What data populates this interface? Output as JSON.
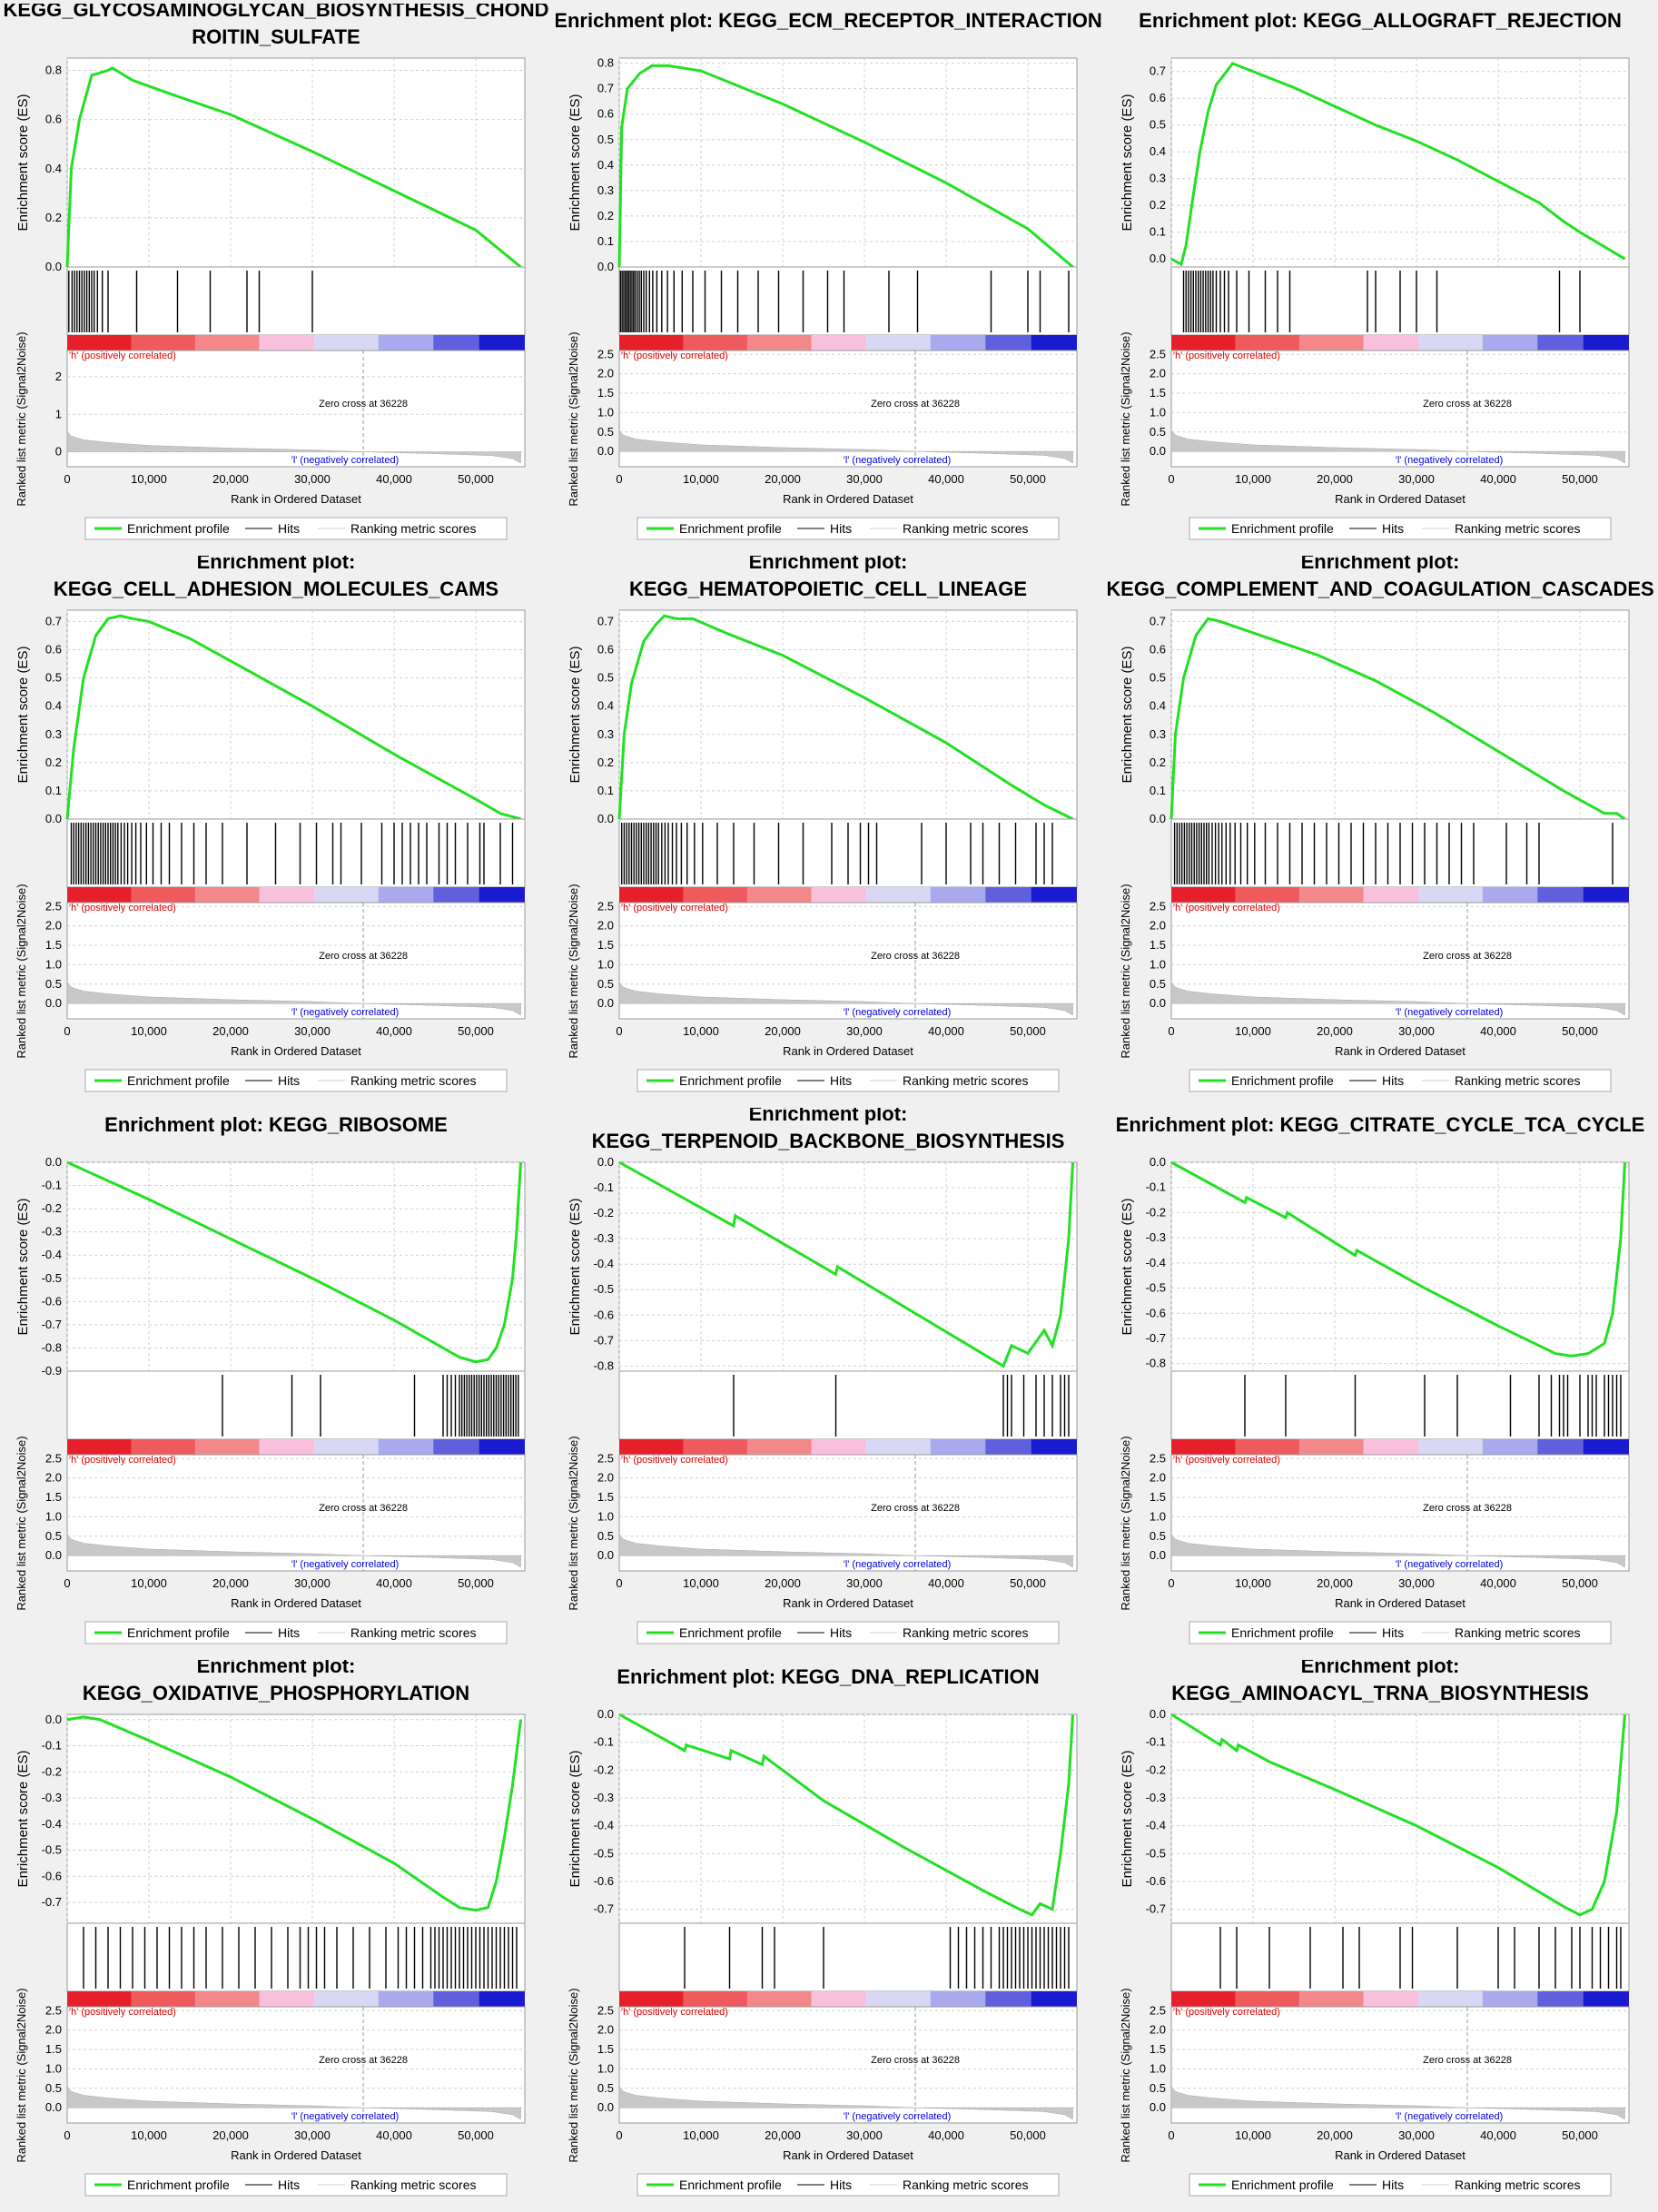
{
  "colors": {
    "es_line": "#22e022",
    "hit": "#000000",
    "bg": "#f0f0f0",
    "plot_bg": "#ffffff",
    "grid": "#d0d0d0",
    "pos_label": "#e00000",
    "neg_label": "#0000e0",
    "metric_fill": "#c8c8c8",
    "heat_bins": [
      "#e6202a",
      "#ef5a5e",
      "#f4878a",
      "#f9c0dd",
      "#d8d8f4",
      "#a9a9ee",
      "#6060de",
      "#1a1ad0"
    ]
  },
  "labels": {
    "title_prefix": "Enrichment plot:",
    "es_ylabel": "Enrichment score (ES)",
    "metric_ylabel": "Ranked list metric (Signal2Noise)",
    "xlabel": "Rank in Ordered Dataset",
    "pos_corr": "'h' (positively correlated)",
    "neg_corr": "'l' (negatively correlated)",
    "zero_cross": "Zero cross at 36228",
    "legend": [
      "Enrichment profile",
      "Hits",
      "Ranking metric scores"
    ],
    "x_ticks": [
      "0",
      "10,000",
      "20,000",
      "30,000",
      "40,000",
      "50,000"
    ],
    "metric_ticks_a": [
      "0",
      "1",
      "2"
    ],
    "metric_ticks_b": [
      "0.0",
      "0.5",
      "1.0",
      "1.5",
      "2.0",
      "2.5"
    ]
  },
  "chart_data": [
    {
      "type": "line",
      "title": "KEGG_GLYCOSAMINOGLYCAN_BIOSYNTHESIS_CHOND ROITIN_SULFATE",
      "title_lines": [
        "KEGG_GLYCOSAMINOGLYCAN_BIOSYNTHESIS_CHOND",
        "ROITIN_SULFATE"
      ],
      "x_range": [
        0,
        56000
      ],
      "es_ticks": [
        "0.0",
        "0.2",
        "0.4",
        "0.6",
        "0.8"
      ],
      "es_range": [
        0,
        0.85
      ],
      "metric_ticks": "a",
      "es_x": [
        0,
        500,
        1500,
        3000,
        5000,
        5500,
        8000,
        13000,
        20000,
        30000,
        40000,
        50000,
        55500
      ],
      "es_y": [
        0,
        0.4,
        0.6,
        0.78,
        0.8,
        0.81,
        0.76,
        0.7,
        0.62,
        0.47,
        0.31,
        0.15,
        0.0
      ],
      "hits": [
        200,
        600,
        900,
        1200,
        1500,
        1800,
        2100,
        2400,
        2700,
        3000,
        3300,
        3700,
        4300,
        5000,
        8500,
        13500,
        17500,
        22000,
        23500,
        30000
      ]
    },
    {
      "type": "line",
      "title": "KEGG_ECM_RECEPTOR_INTERACTION",
      "title_lines": [
        "Enrichment plot: KEGG_ECM_RECEPTOR_INTERACTION"
      ],
      "x_range": [
        0,
        56000
      ],
      "es_ticks": [
        "0.0",
        "0.1",
        "0.2",
        "0.3",
        "0.4",
        "0.5",
        "0.6",
        "0.7",
        "0.8"
      ],
      "es_range": [
        0,
        0.82
      ],
      "metric_ticks": "b",
      "es_x": [
        0,
        300,
        1000,
        2500,
        4000,
        6000,
        10000,
        20000,
        30000,
        40000,
        50000,
        55500
      ],
      "es_y": [
        0,
        0.55,
        0.7,
        0.76,
        0.79,
        0.79,
        0.77,
        0.64,
        0.49,
        0.33,
        0.15,
        0.0
      ],
      "hits": [
        150,
        350,
        550,
        750,
        950,
        1150,
        1350,
        1550,
        1750,
        1950,
        2200,
        2450,
        2700,
        3000,
        3300,
        3700,
        4100,
        4600,
        5200,
        5900,
        6700,
        7700,
        9000,
        10500,
        12500,
        14500,
        17000,
        19500,
        22500,
        25500,
        27500,
        33000,
        36500,
        45500,
        50000,
        51500,
        55000
      ]
    },
    {
      "type": "line",
      "title": "KEGG_ALLOGRAFT_REJECTION",
      "title_lines": [
        "Enrichment plot: KEGG_ALLOGRAFT_REJECTION"
      ],
      "x_range": [
        0,
        56000
      ],
      "es_ticks": [
        "0.0",
        "0.1",
        "0.2",
        "0.3",
        "0.4",
        "0.5",
        "0.6",
        "0.7"
      ],
      "es_range": [
        -0.03,
        0.75
      ],
      "metric_ticks": "b",
      "es_x": [
        0,
        1200,
        1800,
        2500,
        3500,
        4500,
        5500,
        7500,
        10000,
        15000,
        20000,
        25000,
        30000,
        35000,
        40000,
        45000,
        48000,
        50000,
        55500
      ],
      "es_y": [
        0,
        -0.02,
        0.05,
        0.2,
        0.4,
        0.55,
        0.65,
        0.73,
        0.7,
        0.64,
        0.57,
        0.5,
        0.44,
        0.37,
        0.29,
        0.21,
        0.14,
        0.1,
        0.0
      ],
      "hits": [
        1500,
        1800,
        2100,
        2400,
        2700,
        3000,
        3300,
        3600,
        3900,
        4200,
        4500,
        4800,
        5100,
        5500,
        6000,
        6500,
        7000,
        8000,
        9500,
        11500,
        13000,
        14500,
        24000,
        25000,
        28000,
        30000,
        32500,
        47500,
        50000
      ]
    },
    {
      "type": "line",
      "title": "KEGG_CELL_ADHESION_MOLECULES_CAMS",
      "title_lines": [
        "Enrichment plot:",
        "KEGG_CELL_ADHESION_MOLECULES_CAMS"
      ],
      "x_range": [
        0,
        56000
      ],
      "es_ticks": [
        "0.0",
        "0.1",
        "0.2",
        "0.3",
        "0.4",
        "0.5",
        "0.6",
        "0.7"
      ],
      "es_range": [
        0,
        0.74
      ],
      "metric_ticks": "b",
      "es_x": [
        0,
        800,
        2000,
        3500,
        5000,
        6500,
        8000,
        10000,
        15000,
        20000,
        30000,
        40000,
        50000,
        53000,
        55500
      ],
      "es_y": [
        0,
        0.25,
        0.5,
        0.65,
        0.71,
        0.72,
        0.71,
        0.7,
        0.64,
        0.56,
        0.4,
        0.23,
        0.07,
        0.02,
        0.0
      ],
      "hits": [
        500,
        800,
        1100,
        1400,
        1700,
        2000,
        2300,
        2600,
        2900,
        3200,
        3500,
        3800,
        4100,
        4400,
        4700,
        5000,
        5300,
        5600,
        5900,
        6200,
        6600,
        7000,
        7400,
        7900,
        8400,
        9000,
        9700,
        10500,
        11500,
        12500,
        14000,
        15500,
        17000,
        19000,
        22000,
        25500,
        28500,
        30500,
        32500,
        33500,
        36000,
        38500,
        40000,
        41000,
        42000,
        43000,
        44000,
        45500,
        46500,
        47500,
        49000,
        50500,
        51000,
        53000,
        54500
      ]
    },
    {
      "type": "line",
      "title": "KEGG_HEMATOPOIETIC_CELL_LINEAGE",
      "title_lines": [
        "Enrichment plot:",
        "KEGG_HEMATOPOIETIC_CELL_LINEAGE"
      ],
      "x_range": [
        0,
        56000
      ],
      "es_ticks": [
        "0.0",
        "0.1",
        "0.2",
        "0.3",
        "0.4",
        "0.5",
        "0.6",
        "0.7"
      ],
      "es_range": [
        0,
        0.74
      ],
      "metric_ticks": "b",
      "es_x": [
        0,
        600,
        1500,
        3000,
        4500,
        5500,
        7000,
        9000,
        13000,
        20000,
        30000,
        40000,
        48000,
        52000,
        55500
      ],
      "es_y": [
        0,
        0.3,
        0.48,
        0.63,
        0.69,
        0.72,
        0.71,
        0.71,
        0.66,
        0.58,
        0.43,
        0.27,
        0.12,
        0.05,
        0.0
      ],
      "hits": [
        300,
        600,
        900,
        1200,
        1500,
        1800,
        2100,
        2400,
        2700,
        3000,
        3300,
        3600,
        3900,
        4200,
        4500,
        4800,
        5200,
        5600,
        6000,
        6500,
        7000,
        7600,
        8300,
        9200,
        10200,
        12000,
        14000,
        16500,
        19500,
        22500,
        26000,
        28000,
        29500,
        30500,
        31500,
        37000,
        40000,
        43000,
        44500,
        46500,
        48500,
        51000,
        52000,
        53000
      ]
    },
    {
      "type": "line",
      "title": "KEGG_COMPLEMENT_AND_COAGULATION_CASCADES",
      "title_lines": [
        "Enrichment plot:",
        "KEGG_COMPLEMENT_AND_COAGULATION_CASCADES"
      ],
      "x_range": [
        0,
        56000
      ],
      "es_ticks": [
        "0.0",
        "0.1",
        "0.2",
        "0.3",
        "0.4",
        "0.5",
        "0.6",
        "0.7"
      ],
      "es_range": [
        0,
        0.74
      ],
      "metric_ticks": "b",
      "es_x": [
        0,
        500,
        1500,
        3000,
        4500,
        6000,
        8000,
        12000,
        18000,
        25000,
        32000,
        40000,
        48000,
        53000,
        54500,
        55500
      ],
      "es_y": [
        0,
        0.3,
        0.5,
        0.65,
        0.71,
        0.7,
        0.68,
        0.64,
        0.58,
        0.49,
        0.38,
        0.24,
        0.1,
        0.02,
        0.02,
        0.0
      ],
      "hits": [
        400,
        700,
        1000,
        1300,
        1600,
        1900,
        2200,
        2500,
        2800,
        3100,
        3400,
        3700,
        4000,
        4300,
        4600,
        5000,
        5400,
        5800,
        6200,
        6700,
        7200,
        7800,
        8500,
        9300,
        10200,
        11500,
        13000,
        14500,
        16000,
        17500,
        19000,
        20500,
        22000,
        23500,
        25000,
        26500,
        28000,
        29500,
        31000,
        32500,
        34000,
        35500,
        37000,
        41000,
        43500,
        45000,
        54000
      ]
    },
    {
      "type": "line",
      "title": "KEGG_RIBOSOME",
      "title_lines": [
        "Enrichment plot: KEGG_RIBOSOME"
      ],
      "x_range": [
        0,
        56000
      ],
      "es_ticks": [
        "0.0",
        "-0.1",
        "-0.2",
        "-0.3",
        "-0.4",
        "-0.5",
        "-0.6",
        "-0.7",
        "-0.8",
        "-0.9"
      ],
      "es_range": [
        -0.9,
        0
      ],
      "metric_ticks": "b",
      "es_x": [
        0,
        10000,
        20000,
        30000,
        40000,
        48000,
        50000,
        51500,
        52500,
        53500,
        54500,
        55000,
        55500
      ],
      "es_y": [
        0,
        -0.16,
        -0.33,
        -0.5,
        -0.68,
        -0.84,
        -0.86,
        -0.85,
        -0.8,
        -0.7,
        -0.5,
        -0.3,
        0.0
      ],
      "hits": [
        19000,
        27500,
        31000,
        42500,
        46000,
        46500,
        47000,
        47500,
        48000,
        48300,
        48600,
        48900,
        49200,
        49500,
        49800,
        50100,
        50400,
        50700,
        51000,
        51300,
        51600,
        51900,
        52200,
        52500,
        52800,
        53100,
        53400,
        53700,
        54000,
        54300,
        54600,
        54900,
        55200
      ]
    },
    {
      "type": "line",
      "title": "KEGG_TERPENOID_BACKBONE_BIOSYNTHESIS",
      "title_lines": [
        "Enrichment plot:",
        "KEGG_TERPENOID_BACKBONE_BIOSYNTHESIS"
      ],
      "x_range": [
        0,
        56000
      ],
      "es_ticks": [
        "0.0",
        "-0.1",
        "-0.2",
        "-0.3",
        "-0.4",
        "-0.5",
        "-0.6",
        "-0.7",
        "-0.8"
      ],
      "es_range": [
        -0.82,
        0
      ],
      "metric_ticks": "b",
      "es_x": [
        0,
        14000,
        14200,
        26500,
        26700,
        47000,
        48000,
        50000,
        52000,
        53000,
        54000,
        55000,
        55500
      ],
      "es_y": [
        0,
        -0.25,
        -0.21,
        -0.44,
        -0.41,
        -0.8,
        -0.72,
        -0.75,
        -0.66,
        -0.72,
        -0.6,
        -0.3,
        0.0
      ],
      "hits": [
        14000,
        26500,
        47000,
        47500,
        48000,
        49500,
        51000,
        52000,
        53000,
        54000,
        54500,
        55000
      ]
    },
    {
      "type": "line",
      "title": "KEGG_CITRATE_CYCLE_TCA_CYCLE",
      "title_lines": [
        "Enrichment plot: KEGG_CITRATE_CYCLE_TCA_CYCLE"
      ],
      "x_range": [
        0,
        56000
      ],
      "es_ticks": [
        "0.0",
        "-0.1",
        "-0.2",
        "-0.3",
        "-0.4",
        "-0.5",
        "-0.6",
        "-0.7",
        "-0.8"
      ],
      "es_range": [
        -0.83,
        0
      ],
      "metric_ticks": "b",
      "es_x": [
        0,
        9000,
        9200,
        14000,
        14200,
        22500,
        22700,
        31000,
        40000,
        47000,
        49000,
        51000,
        53000,
        54000,
        55000,
        55500
      ],
      "es_y": [
        0,
        -0.16,
        -0.14,
        -0.22,
        -0.2,
        -0.37,
        -0.35,
        -0.5,
        -0.65,
        -0.76,
        -0.77,
        -0.76,
        -0.72,
        -0.6,
        -0.3,
        0.0
      ],
      "hits": [
        9000,
        14000,
        22500,
        31000,
        35000,
        41500,
        45000,
        46500,
        47500,
        48000,
        48500,
        50000,
        51000,
        51500,
        52000,
        53000,
        53500,
        54000,
        54500,
        55000
      ]
    },
    {
      "type": "line",
      "title": "KEGG_OXIDATIVE_PHOSPHORYLATION",
      "title_lines": [
        "Enrichment plot:",
        "KEGG_OXIDATIVE_PHOSPHORYLATION"
      ],
      "x_range": [
        0,
        56000
      ],
      "es_ticks": [
        "0.0",
        "-0.1",
        "-0.2",
        "-0.3",
        "-0.4",
        "-0.5",
        "-0.6",
        "-0.7"
      ],
      "es_range": [
        -0.78,
        0.02
      ],
      "metric_ticks": "b",
      "es_x": [
        0,
        2000,
        4000,
        10000,
        20000,
        30000,
        40000,
        46000,
        48000,
        50000,
        51500,
        52500,
        53500,
        54500,
        55500
      ],
      "es_y": [
        0,
        0.01,
        0.0,
        -0.08,
        -0.22,
        -0.38,
        -0.55,
        -0.68,
        -0.72,
        -0.73,
        -0.72,
        -0.62,
        -0.45,
        -0.25,
        0.0
      ],
      "hits": [
        2000,
        3500,
        5000,
        6500,
        8000,
        9500,
        11000,
        12500,
        14000,
        15500,
        17000,
        19000,
        21000,
        23000,
        25000,
        27000,
        28500,
        29500,
        30500,
        31500,
        33000,
        35000,
        37000,
        39000,
        40500,
        41500,
        42500,
        43500,
        44500,
        45000,
        45500,
        46000,
        46500,
        47000,
        47500,
        48000,
        48500,
        49000,
        49500,
        50000,
        50500,
        51000,
        51500,
        52000,
        52500,
        53000,
        53500,
        54000,
        54500,
        55000
      ]
    },
    {
      "type": "line",
      "title": "KEGG_DNA_REPLICATION",
      "title_lines": [
        "Enrichment plot: KEGG_DNA_REPLICATION"
      ],
      "x_range": [
        0,
        56000
      ],
      "es_ticks": [
        "0.0",
        "-0.1",
        "-0.2",
        "-0.3",
        "-0.4",
        "-0.5",
        "-0.6",
        "-0.7"
      ],
      "es_range": [
        -0.75,
        0
      ],
      "metric_ticks": "b",
      "es_x": [
        0,
        8000,
        8200,
        13500,
        13700,
        17500,
        17700,
        25000,
        35000,
        45000,
        49000,
        50500,
        51500,
        53000,
        54000,
        55000,
        55500
      ],
      "es_y": [
        0,
        -0.13,
        -0.11,
        -0.16,
        -0.13,
        -0.18,
        -0.15,
        -0.31,
        -0.48,
        -0.64,
        -0.7,
        -0.72,
        -0.68,
        -0.7,
        -0.5,
        -0.25,
        0.0
      ],
      "hits": [
        8000,
        13500,
        17500,
        19000,
        25000,
        40500,
        41500,
        42500,
        43500,
        44500,
        45500,
        46500,
        47000,
        47500,
        48000,
        48500,
        49000,
        49500,
        50000,
        50500,
        51000,
        51500,
        52000,
        52500,
        53000,
        53500,
        54000,
        54500,
        55000
      ]
    },
    {
      "type": "line",
      "title": "KEGG_AMINOACYL_TRNA_BIOSYNTHESIS",
      "title_lines": [
        "Enrichment plot:",
        "KEGG_AMINOACYL_TRNA_BIOSYNTHESIS"
      ],
      "x_range": [
        0,
        56000
      ],
      "es_ticks": [
        "0.0",
        "-0.1",
        "-0.2",
        "-0.3",
        "-0.4",
        "-0.5",
        "-0.6",
        "-0.7"
      ],
      "es_range": [
        -0.75,
        0
      ],
      "metric_ticks": "b",
      "es_x": [
        0,
        6000,
        6200,
        8000,
        8200,
        12000,
        20000,
        30000,
        40000,
        48000,
        50000,
        51500,
        53000,
        54500,
        55500
      ],
      "es_y": [
        0,
        -0.11,
        -0.09,
        -0.13,
        -0.11,
        -0.17,
        -0.27,
        -0.4,
        -0.55,
        -0.69,
        -0.72,
        -0.7,
        -0.6,
        -0.35,
        0.0
      ],
      "hits": [
        6000,
        8000,
        12000,
        17000,
        21000,
        23000,
        28000,
        29500,
        35000,
        40000,
        42000,
        45000,
        47000,
        49000,
        50000,
        51500,
        52500,
        53500,
        54500,
        55000
      ]
    }
  ]
}
